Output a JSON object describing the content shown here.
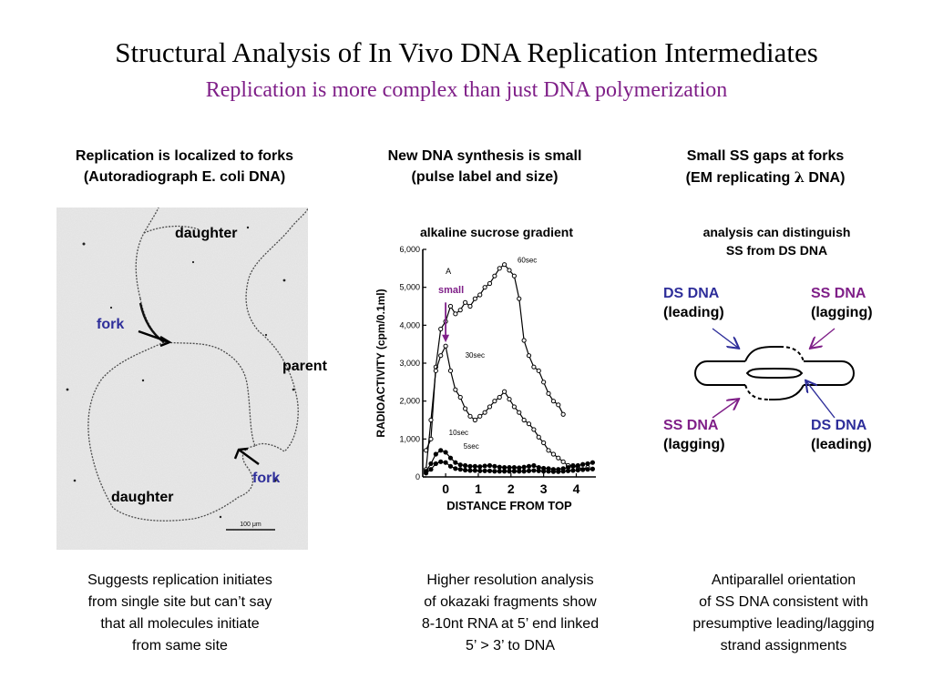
{
  "title": "Structural Analysis of In Vivo DNA Replication Intermediates",
  "subtitle": "Replication is more complex than just DNA polymerization",
  "colors": {
    "subtitle": "#7f1f88",
    "fork_label": "#2e2e9a",
    "ds_label": "#2e2e9a",
    "ss_label": "#7f1f88",
    "arrow_blue": "#2e2e9a",
    "arrow_purple": "#7f1f88"
  },
  "left": {
    "heading_line1": "Replication is localized to forks",
    "heading_line2": "(Autoradiograph E. coli DNA)",
    "labels": {
      "daughter_top": "daughter",
      "fork_top": "fork",
      "parent": "parent",
      "fork_bottom": "fork",
      "daughter_bottom": "daughter",
      "scale": "100 μm"
    },
    "caption": [
      "Suggests replication initiates",
      "from single site but can’t say",
      "that all molecules initiate",
      "from same site"
    ]
  },
  "middle": {
    "heading_line1": "New DNA synthesis is small",
    "heading_line2": "(pulse label and size)",
    "chart_title": "alkaline sucrose gradient",
    "small_label": "small",
    "peak_label": "A",
    "caption": [
      "Higher resolution analysis",
      "of okazaki fragments show",
      "8-10nt RNA at 5’ end linked",
      "5’ > 3’ to DNA"
    ]
  },
  "right": {
    "heading_line1": "Small SS gaps at forks",
    "heading_line2_pre": "(EM replicating ",
    "heading_symbol": "λ",
    "heading_line2_post": " DNA)",
    "note": [
      "analysis can distinguish",
      "SS from DS DNA"
    ],
    "ds_top_label": "DS DNA",
    "ds_top_sub": "(leading)",
    "ss_top_label": "SS DNA",
    "ss_top_sub": "(lagging)",
    "ss_bottom_label": "SS DNA",
    "ss_bottom_sub": "(lagging)",
    "ds_bottom_label": "DS DNA",
    "ds_bottom_sub": "(leading)",
    "caption": [
      "Antiparallel orientation",
      "of SS DNA consistent with",
      "presumptive leading/lagging",
      "strand assignments"
    ]
  },
  "chart_data": {
    "type": "line",
    "title": "",
    "xlabel": "DISTANCE FROM TOP",
    "ylabel": "RADIOACTIVITY (cpm/0.1ml)",
    "xlim": [
      -0.7,
      4.6
    ],
    "ylim": [
      0,
      6000
    ],
    "xticks": [
      "0",
      "1",
      "2",
      "3",
      "4"
    ],
    "yticks": [
      "0",
      "1,000",
      "2,000",
      "3,000",
      "4,000",
      "5,000",
      "6,000"
    ],
    "series": [
      {
        "name": "60sec",
        "x": [
          -0.6,
          -0.45,
          -0.3,
          -0.15,
          0,
          0.15,
          0.3,
          0.45,
          0.6,
          0.75,
          0.9,
          1.05,
          1.2,
          1.35,
          1.5,
          1.65,
          1.8,
          1.95,
          2.1,
          2.25,
          2.4,
          2.55,
          2.7,
          2.85,
          3.0,
          3.15,
          3.3,
          3.45,
          3.6
        ],
        "y": [
          700,
          1000,
          2900,
          3900,
          4100,
          4500,
          4300,
          4400,
          4600,
          4500,
          4700,
          4800,
          5000,
          5100,
          5300,
          5500,
          5600,
          5450,
          5300,
          4700,
          3600,
          3200,
          2900,
          2800,
          2500,
          2200,
          2000,
          1900,
          1650
        ]
      },
      {
        "name": "30sec",
        "x": [
          -0.6,
          -0.45,
          -0.3,
          -0.15,
          0,
          0.15,
          0.3,
          0.45,
          0.6,
          0.75,
          0.9,
          1.05,
          1.2,
          1.35,
          1.5,
          1.65,
          1.8,
          1.95,
          2.1,
          2.25,
          2.4,
          2.55,
          2.7,
          2.85,
          3.0,
          3.15,
          3.3,
          3.45,
          3.6,
          3.75,
          3.9,
          4.05,
          4.2,
          4.35
        ],
        "y": [
          200,
          1500,
          2800,
          3200,
          3450,
          2800,
          2300,
          2100,
          1800,
          1600,
          1500,
          1600,
          1700,
          1850,
          2000,
          2100,
          2250,
          2050,
          1850,
          1700,
          1500,
          1400,
          1250,
          1050,
          900,
          700,
          600,
          500,
          400,
          300,
          300,
          250,
          200,
          250
        ]
      },
      {
        "name": "10sec",
        "x": [
          -0.6,
          -0.45,
          -0.3,
          -0.15,
          0,
          0.15,
          0.3,
          0.45,
          0.6,
          0.75,
          0.9,
          1.05,
          1.2,
          1.35,
          1.5,
          1.65,
          1.8,
          1.95,
          2.1,
          2.25,
          2.4,
          2.55,
          2.7,
          2.85,
          3.0,
          3.15,
          3.3,
          3.45,
          3.6,
          3.75,
          3.9,
          4.05,
          4.2,
          4.35,
          4.5
        ],
        "y": [
          150,
          350,
          600,
          700,
          650,
          500,
          380,
          320,
          300,
          280,
          280,
          270,
          290,
          300,
          280,
          260,
          250,
          250,
          250,
          240,
          260,
          280,
          300,
          250,
          230,
          220,
          200,
          200,
          220,
          250,
          280,
          300,
          330,
          350,
          380
        ]
      },
      {
        "name": "5sec",
        "x": [
          -0.6,
          -0.45,
          -0.3,
          -0.15,
          0,
          0.15,
          0.3,
          0.45,
          0.6,
          0.75,
          0.9,
          1.05,
          1.2,
          1.35,
          1.5,
          1.65,
          1.8,
          1.95,
          2.1,
          2.25,
          2.4,
          2.55,
          2.7,
          2.85,
          3.0,
          3.15,
          3.3,
          3.45,
          3.6,
          3.75,
          3.9,
          4.05,
          4.2,
          4.35,
          4.5
        ],
        "y": [
          100,
          200,
          350,
          400,
          380,
          280,
          220,
          200,
          180,
          170,
          170,
          160,
          160,
          160,
          150,
          150,
          150,
          150,
          150,
          150,
          150,
          160,
          170,
          160,
          150,
          150,
          140,
          140,
          150,
          160,
          170,
          180,
          190,
          200,
          210
        ]
      }
    ],
    "open_markers": [
      "60sec",
      "30sec"
    ],
    "grid": false,
    "legend": "inline labels near curves"
  }
}
